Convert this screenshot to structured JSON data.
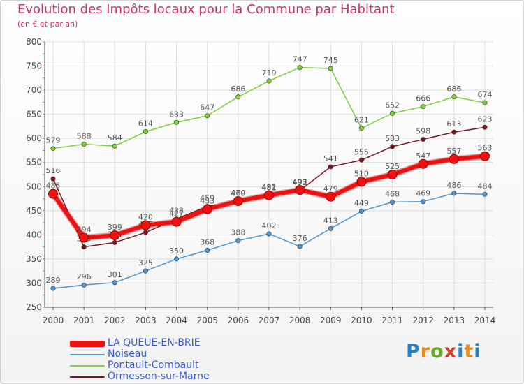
{
  "title": "Evolution des Impôts locaux pour la Commune par Habitant",
  "subtitle": "(en € et par an)",
  "logo_text": "Proxiti",
  "chart_data": {
    "type": "line",
    "title": "Evolution des Impôts locaux pour la Commune par Habitant",
    "subtitle": "(en € et par an)",
    "xlabel": "",
    "ylabel": "",
    "x": [
      2000,
      2001,
      2002,
      2003,
      2004,
      2005,
      2006,
      2007,
      2008,
      2009,
      2010,
      2011,
      2012,
      2013,
      2014
    ],
    "ylim": [
      250,
      800
    ],
    "yticks": [
      250,
      300,
      350,
      400,
      450,
      500,
      550,
      600,
      650,
      700,
      750,
      800
    ],
    "grid": true,
    "legend_position": "bottom-left",
    "series": [
      {
        "name": "Pontault-Combault",
        "color": "#7cd039",
        "values": [
          579,
          588,
          584,
          614,
          633,
          647,
          686,
          719,
          747,
          745,
          621,
          652,
          666,
          686,
          674
        ]
      },
      {
        "name": "Noiseau",
        "color": "#4f96d0",
        "values": [
          289,
          296,
          301,
          325,
          350,
          368,
          388,
          402,
          376,
          413,
          449,
          468,
          469,
          486,
          484
        ]
      },
      {
        "name": "Ormesson-sur-Marne",
        "color": "#7a1520",
        "values": [
          516,
          375,
          384,
          405,
          433,
          459,
          469,
          481,
          492,
          541,
          555,
          583,
          598,
          613,
          623
        ]
      },
      {
        "name": "LA QUEUE-EN-BRIE",
        "color": "#ee1111",
        "values": [
          485,
          394,
          399,
          420,
          427,
          453,
          470,
          482,
          493,
          479,
          510,
          525,
          547,
          557,
          563
        ]
      }
    ]
  }
}
